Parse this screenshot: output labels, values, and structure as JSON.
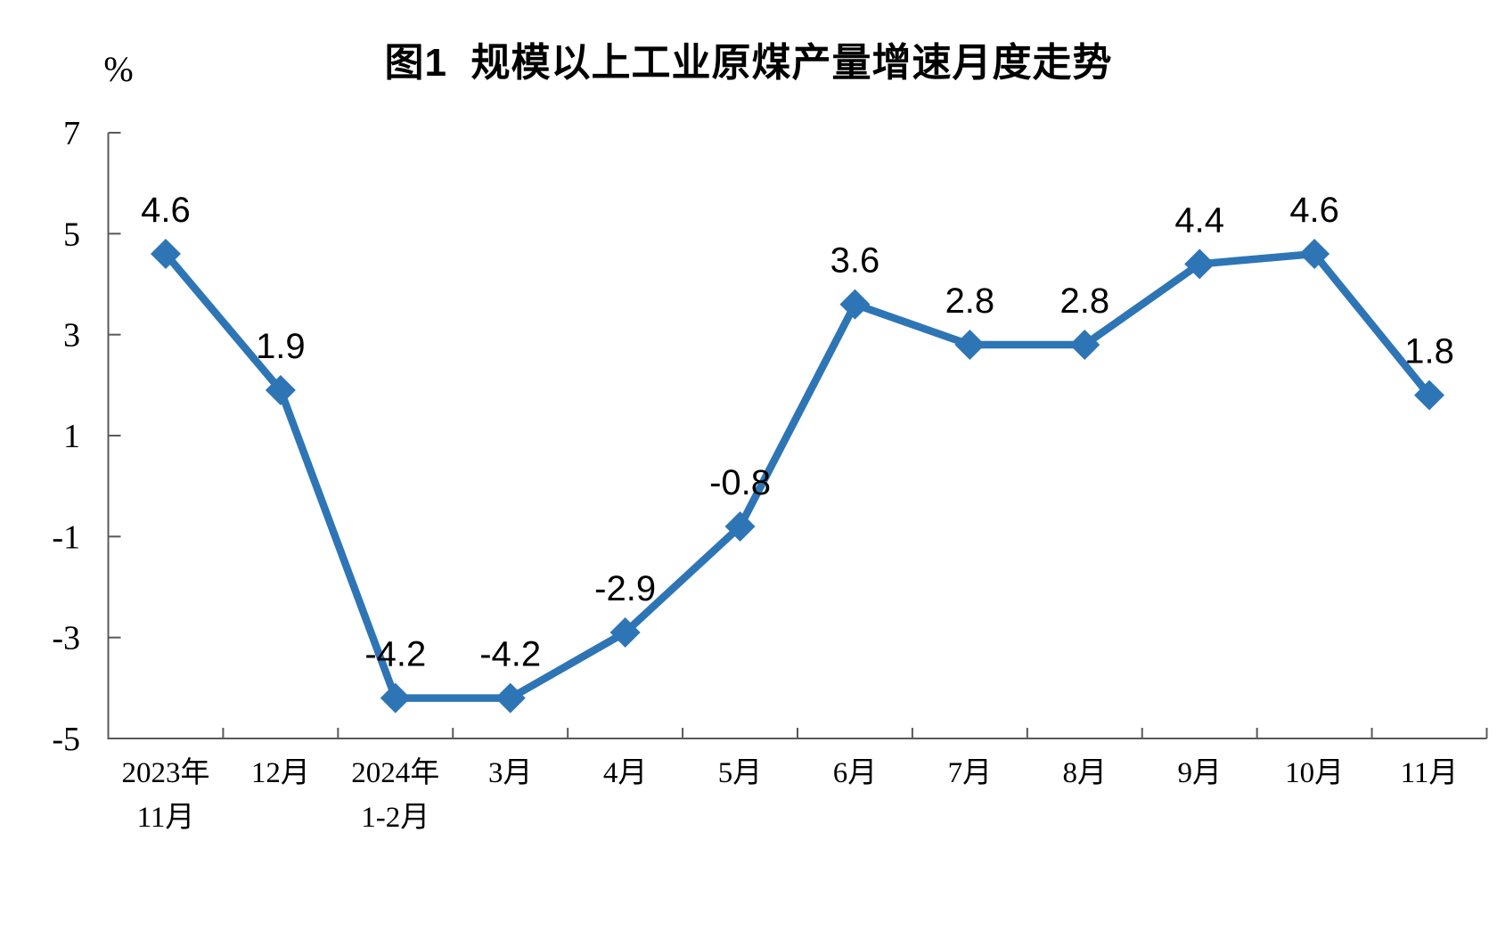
{
  "chart_data": {
    "type": "line",
    "title": "图1  规模以上工业原煤产量增速月度走势",
    "unit_label": "%",
    "categories": [
      [
        "2023年",
        "11月"
      ],
      [
        "12月"
      ],
      [
        "2024年",
        "1-2月"
      ],
      [
        "3月"
      ],
      [
        "4月"
      ],
      [
        "5月"
      ],
      [
        "6月"
      ],
      [
        "7月"
      ],
      [
        "8月"
      ],
      [
        "9月"
      ],
      [
        "10月"
      ],
      [
        "11月"
      ]
    ],
    "values": [
      4.6,
      1.9,
      -4.2,
      -4.2,
      -2.9,
      -0.8,
      3.6,
      2.8,
      2.8,
      4.4,
      4.6,
      1.8
    ],
    "data_labels": [
      "4.6",
      "1.9",
      "-4.2",
      "-4.2",
      "-2.9",
      "-0.8",
      "3.6",
      "2.8",
      "2.8",
      "4.4",
      "4.6",
      "1.8"
    ],
    "yticks": [
      7,
      5,
      3,
      1,
      -1,
      -3,
      -5
    ],
    "ylim": [
      -5,
      7
    ],
    "grid": false,
    "legend": "none",
    "marker": "diamond",
    "line_color": "#2E75B6",
    "axis_color": "#595959",
    "text_color": "#000000"
  }
}
